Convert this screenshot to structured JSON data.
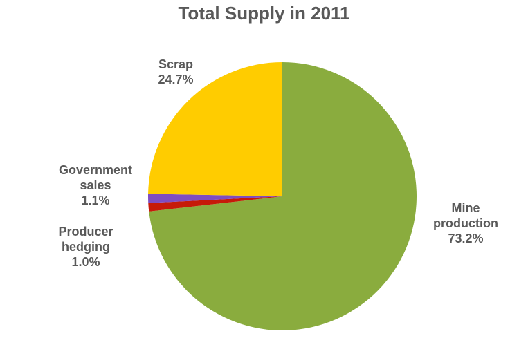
{
  "chart_data": {
    "type": "pie",
    "title": "Total Supply in 2011",
    "slices": [
      {
        "name": "Mine production",
        "label_lines": [
          "Mine",
          "production"
        ],
        "value": 73.2,
        "value_label": "73.2%",
        "color": "#8aac3e"
      },
      {
        "name": "Producer hedging",
        "label_lines": [
          "Producer",
          "hedging"
        ],
        "value": 1.0,
        "value_label": "1.0%",
        "color": "#c61a09"
      },
      {
        "name": "Government sales",
        "label_lines": [
          "Government",
          "sales"
        ],
        "value": 1.1,
        "value_label": "1.1%",
        "color": "#7f4dc1"
      },
      {
        "name": "Scrap",
        "label_lines": [
          "Scrap"
        ],
        "value": 24.7,
        "value_label": "24.7%",
        "color": "#ffcc00"
      }
    ],
    "start_angle_deg": 0,
    "direction": "clockwise"
  }
}
